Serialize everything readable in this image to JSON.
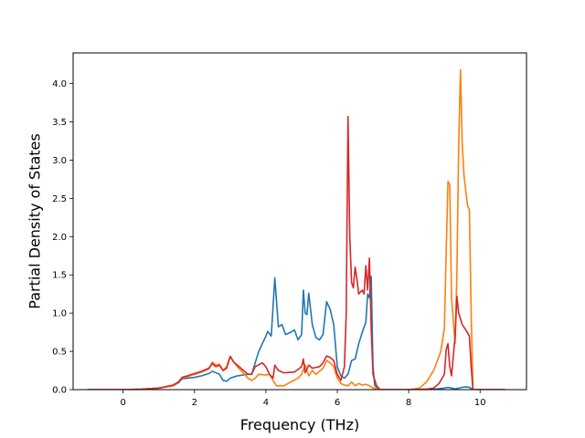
{
  "chart_data": {
    "type": "line",
    "title": "",
    "xlabel": "Frequency (THz)",
    "ylabel": "Partial Density of States",
    "xlim": [
      -1.4,
      11.3
    ],
    "ylim": [
      0,
      4.4
    ],
    "xticks": [
      0,
      2,
      4,
      6,
      8,
      10
    ],
    "yticks": [
      0.0,
      0.5,
      1.0,
      1.5,
      2.0,
      2.5,
      3.0,
      3.5,
      4.0
    ],
    "grid": false,
    "legend": "none",
    "series": [
      {
        "color": "#1f77b4",
        "points": [
          [
            -1.0,
            0
          ],
          [
            0.0,
            0
          ],
          [
            0.5,
            0.005
          ],
          [
            1.0,
            0.02
          ],
          [
            1.4,
            0.05
          ],
          [
            1.55,
            0.09
          ],
          [
            1.65,
            0.14
          ],
          [
            1.8,
            0.15
          ],
          [
            2.0,
            0.16
          ],
          [
            2.2,
            0.18
          ],
          [
            2.4,
            0.21
          ],
          [
            2.5,
            0.24
          ],
          [
            2.6,
            0.22
          ],
          [
            2.7,
            0.2
          ],
          [
            2.8,
            0.12
          ],
          [
            2.9,
            0.11
          ],
          [
            3.0,
            0.15
          ],
          [
            3.2,
            0.18
          ],
          [
            3.5,
            0.2
          ],
          [
            3.6,
            0.2
          ],
          [
            3.7,
            0.35
          ],
          [
            3.8,
            0.5
          ],
          [
            3.9,
            0.6
          ],
          [
            4.0,
            0.7
          ],
          [
            4.05,
            0.76
          ],
          [
            4.15,
            0.7
          ],
          [
            4.25,
            1.46
          ],
          [
            4.35,
            0.82
          ],
          [
            4.45,
            0.85
          ],
          [
            4.55,
            0.72
          ],
          [
            4.7,
            0.75
          ],
          [
            4.8,
            0.78
          ],
          [
            4.9,
            0.65
          ],
          [
            5.0,
            0.72
          ],
          [
            5.05,
            1.3
          ],
          [
            5.1,
            1.0
          ],
          [
            5.15,
            0.98
          ],
          [
            5.2,
            1.26
          ],
          [
            5.3,
            0.85
          ],
          [
            5.4,
            0.68
          ],
          [
            5.5,
            0.65
          ],
          [
            5.6,
            0.72
          ],
          [
            5.7,
            1.15
          ],
          [
            5.8,
            1.05
          ],
          [
            5.9,
            0.85
          ],
          [
            6.0,
            0.3
          ],
          [
            6.1,
            0.18
          ],
          [
            6.2,
            0.15
          ],
          [
            6.3,
            0.2
          ],
          [
            6.4,
            0.38
          ],
          [
            6.5,
            0.4
          ],
          [
            6.6,
            0.6
          ],
          [
            6.7,
            0.75
          ],
          [
            6.8,
            0.88
          ],
          [
            6.85,
            1.25
          ],
          [
            6.9,
            1.2
          ],
          [
            6.95,
            1.48
          ],
          [
            7.0,
            0.3
          ],
          [
            7.05,
            0.05
          ],
          [
            7.2,
            0
          ],
          [
            8.0,
            0
          ],
          [
            8.5,
            0.005
          ],
          [
            8.8,
            0.01
          ],
          [
            9.0,
            0.02
          ],
          [
            9.1,
            0.03
          ],
          [
            9.2,
            0.02
          ],
          [
            9.3,
            0.01
          ],
          [
            9.5,
            0.03
          ],
          [
            9.6,
            0.035
          ],
          [
            9.7,
            0.03
          ],
          [
            9.8,
            0
          ],
          [
            10.7,
            0
          ]
        ]
      },
      {
        "color": "#ff7f0e",
        "points": [
          [
            -1.0,
            0
          ],
          [
            0.0,
            0
          ],
          [
            0.5,
            0.005
          ],
          [
            1.0,
            0.02
          ],
          [
            1.4,
            0.05
          ],
          [
            1.55,
            0.1
          ],
          [
            1.65,
            0.15
          ],
          [
            1.8,
            0.17
          ],
          [
            2.0,
            0.2
          ],
          [
            2.2,
            0.23
          ],
          [
            2.4,
            0.27
          ],
          [
            2.5,
            0.36
          ],
          [
            2.6,
            0.32
          ],
          [
            2.7,
            0.33
          ],
          [
            2.8,
            0.25
          ],
          [
            2.9,
            0.3
          ],
          [
            3.0,
            0.44
          ],
          [
            3.1,
            0.36
          ],
          [
            3.2,
            0.3
          ],
          [
            3.4,
            0.2
          ],
          [
            3.5,
            0.15
          ],
          [
            3.6,
            0.12
          ],
          [
            3.7,
            0.15
          ],
          [
            3.8,
            0.2
          ],
          [
            4.0,
            0.19
          ],
          [
            4.1,
            0.2
          ],
          [
            4.2,
            0.12
          ],
          [
            4.3,
            0.05
          ],
          [
            4.5,
            0.05
          ],
          [
            4.7,
            0.1
          ],
          [
            4.9,
            0.15
          ],
          [
            5.0,
            0.2
          ],
          [
            5.1,
            0.32
          ],
          [
            5.2,
            0.18
          ],
          [
            5.3,
            0.25
          ],
          [
            5.4,
            0.2
          ],
          [
            5.6,
            0.28
          ],
          [
            5.7,
            0.38
          ],
          [
            5.8,
            0.35
          ],
          [
            5.9,
            0.3
          ],
          [
            6.0,
            0.15
          ],
          [
            6.1,
            0.08
          ],
          [
            6.2,
            0.06
          ],
          [
            6.3,
            0.05
          ],
          [
            6.4,
            0.1
          ],
          [
            6.5,
            0.05
          ],
          [
            6.6,
            0.08
          ],
          [
            6.7,
            0.06
          ],
          [
            6.8,
            0.07
          ],
          [
            6.9,
            0.05
          ],
          [
            7.0,
            0.02
          ],
          [
            7.2,
            0
          ],
          [
            8.0,
            0
          ],
          [
            8.3,
            0.02
          ],
          [
            8.5,
            0.1
          ],
          [
            8.7,
            0.25
          ],
          [
            8.9,
            0.5
          ],
          [
            9.0,
            0.8
          ],
          [
            9.05,
            1.8
          ],
          [
            9.1,
            2.72
          ],
          [
            9.15,
            2.68
          ],
          [
            9.2,
            1.2
          ],
          [
            9.3,
            0.6
          ],
          [
            9.35,
            1.5
          ],
          [
            9.4,
            3.2
          ],
          [
            9.45,
            4.18
          ],
          [
            9.5,
            3.2
          ],
          [
            9.55,
            2.8
          ],
          [
            9.65,
            2.4
          ],
          [
            9.7,
            2.35
          ],
          [
            9.75,
            1.0
          ],
          [
            9.8,
            0
          ],
          [
            10.7,
            0
          ]
        ]
      },
      {
        "color": "#d62728",
        "points": [
          [
            -1.0,
            0
          ],
          [
            0.0,
            0
          ],
          [
            0.5,
            0.005
          ],
          [
            1.0,
            0.02
          ],
          [
            1.4,
            0.06
          ],
          [
            1.55,
            0.1
          ],
          [
            1.65,
            0.16
          ],
          [
            1.8,
            0.18
          ],
          [
            2.0,
            0.21
          ],
          [
            2.2,
            0.24
          ],
          [
            2.4,
            0.28
          ],
          [
            2.5,
            0.34
          ],
          [
            2.6,
            0.3
          ],
          [
            2.7,
            0.32
          ],
          [
            2.8,
            0.25
          ],
          [
            2.9,
            0.28
          ],
          [
            3.0,
            0.43
          ],
          [
            3.1,
            0.36
          ],
          [
            3.3,
            0.28
          ],
          [
            3.5,
            0.2
          ],
          [
            3.6,
            0.2
          ],
          [
            3.7,
            0.3
          ],
          [
            3.9,
            0.35
          ],
          [
            4.0,
            0.3
          ],
          [
            4.1,
            0.2
          ],
          [
            4.2,
            0.15
          ],
          [
            4.25,
            0.32
          ],
          [
            4.35,
            0.25
          ],
          [
            4.5,
            0.22
          ],
          [
            4.8,
            0.23
          ],
          [
            5.0,
            0.3
          ],
          [
            5.05,
            0.4
          ],
          [
            5.1,
            0.22
          ],
          [
            5.2,
            0.32
          ],
          [
            5.3,
            0.28
          ],
          [
            5.5,
            0.3
          ],
          [
            5.6,
            0.35
          ],
          [
            5.7,
            0.44
          ],
          [
            5.8,
            0.42
          ],
          [
            5.9,
            0.38
          ],
          [
            6.0,
            0.2
          ],
          [
            6.1,
            0.12
          ],
          [
            6.2,
            0.3
          ],
          [
            6.25,
            1.0
          ],
          [
            6.3,
            3.57
          ],
          [
            6.35,
            2.0
          ],
          [
            6.4,
            1.4
          ],
          [
            6.45,
            1.33
          ],
          [
            6.5,
            1.6
          ],
          [
            6.55,
            1.45
          ],
          [
            6.6,
            1.25
          ],
          [
            6.7,
            1.3
          ],
          [
            6.75,
            1.25
          ],
          [
            6.8,
            1.62
          ],
          [
            6.85,
            1.3
          ],
          [
            6.9,
            1.72
          ],
          [
            6.95,
            0.8
          ],
          [
            7.0,
            0.2
          ],
          [
            7.1,
            0.05
          ],
          [
            7.2,
            0
          ],
          [
            8.0,
            0
          ],
          [
            8.5,
            0.005
          ],
          [
            8.7,
            0.02
          ],
          [
            8.85,
            0.08
          ],
          [
            9.0,
            0.2
          ],
          [
            9.05,
            0.52
          ],
          [
            9.1,
            0.6
          ],
          [
            9.15,
            0.3
          ],
          [
            9.2,
            0.18
          ],
          [
            9.3,
            0.7
          ],
          [
            9.35,
            1.22
          ],
          [
            9.4,
            1.0
          ],
          [
            9.5,
            0.85
          ],
          [
            9.6,
            0.78
          ],
          [
            9.7,
            0.7
          ],
          [
            9.75,
            0.3
          ],
          [
            9.8,
            0
          ],
          [
            10.7,
            0
          ]
        ]
      }
    ]
  }
}
